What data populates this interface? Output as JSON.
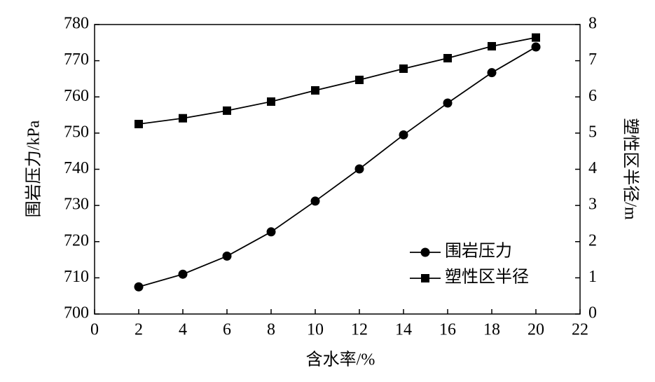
{
  "chart_data": {
    "type": "line",
    "x_label": "含水率/%",
    "y_label": "围岩压力/kPa",
    "y2_label": "塑性区半径/m",
    "x": [
      2,
      4,
      6,
      8,
      10,
      12,
      14,
      16,
      18,
      20
    ],
    "series": [
      {
        "name": "围岩压力",
        "color": "#000000",
        "marker": "circle",
        "values": [
          707.5,
          711,
          716,
          722.7,
          731.2,
          740.1,
          749.5,
          758.3,
          766.7,
          773.8
        ]
      },
      {
        "name": "塑性区半径",
        "color": "#000000",
        "marker": "square",
        "axis": "y2",
        "values": [
          5.25,
          5.41,
          5.62,
          5.87,
          6.18,
          6.47,
          6.78,
          7.07,
          7.4,
          7.64
        ]
      }
    ],
    "xlim": [
      0,
      22
    ],
    "xticks": [
      0,
      2,
      4,
      6,
      8,
      10,
      12,
      14,
      16,
      18,
      20,
      22
    ],
    "ylim": [
      700,
      780
    ],
    "yticks": [
      700,
      710,
      720,
      730,
      740,
      750,
      760,
      770,
      780
    ],
    "y2lim": [
      0,
      8
    ],
    "y2ticks": [
      0,
      1,
      2,
      3,
      4,
      5,
      6,
      7,
      8
    ],
    "legend": "lower right"
  }
}
